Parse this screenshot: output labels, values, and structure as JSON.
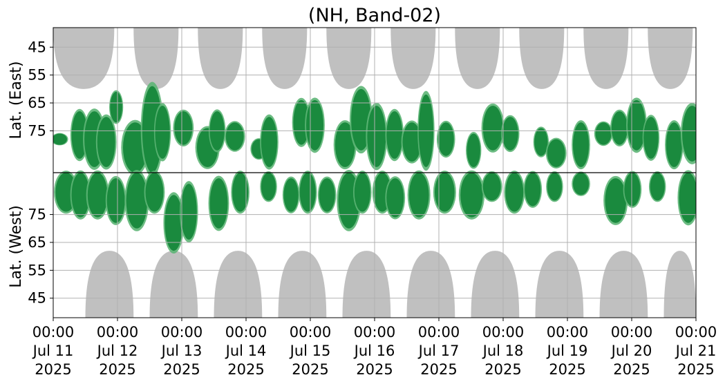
{
  "chart_data": {
    "type": "heatmap",
    "title": "(NH, Band-02)",
    "ylabel_top": "Lat. (East)",
    "ylabel_bottom": "Lat. (West)",
    "y_ticks_top": [
      "45",
      "55",
      "65",
      "75"
    ],
    "y_ticks_bottom": [
      "75",
      "65",
      "55",
      "45"
    ],
    "x_ticks": [
      {
        "time": "00:00",
        "date": "Jul 11",
        "year": "2025"
      },
      {
        "time": "00:00",
        "date": "Jul 12",
        "year": "2025"
      },
      {
        "time": "00:00",
        "date": "Jul 13",
        "year": "2025"
      },
      {
        "time": "00:00",
        "date": "Jul 14",
        "year": "2025"
      },
      {
        "time": "00:00",
        "date": "Jul 15",
        "year": "2025"
      },
      {
        "time": "00:00",
        "date": "Jul 16",
        "year": "2025"
      },
      {
        "time": "00:00",
        "date": "Jul 17",
        "year": "2025"
      },
      {
        "time": "00:00",
        "date": "Jul 18",
        "year": "2025"
      },
      {
        "time": "00:00",
        "date": "Jul 19",
        "year": "2025"
      },
      {
        "time": "00:00",
        "date": "Jul 20",
        "year": "2025"
      },
      {
        "time": "00:00",
        "date": "Jul 21",
        "year": "2025"
      }
    ],
    "x_range": [
      "2025-07-11 00:00",
      "2025-07-21 00:00"
    ],
    "lat_range_top": [
      38,
      90
    ],
    "lat_range_bottom": [
      90,
      38
    ],
    "grid": true,
    "colors": {
      "dense": "#1a8a3e",
      "sparse": "#5db575",
      "daylight": "#c0c0c0",
      "grid": "#b0b0b0",
      "divider": "#000000"
    },
    "daylight_top_days": [
      [
        11.0,
        11.95
      ],
      [
        12.25,
        12.95
      ],
      [
        13.25,
        13.95
      ],
      [
        14.25,
        14.95
      ],
      [
        15.25,
        15.95
      ],
      [
        16.25,
        16.95
      ],
      [
        17.25,
        17.95
      ],
      [
        18.25,
        18.95
      ],
      [
        19.25,
        19.95
      ],
      [
        20.25,
        20.95
      ]
    ],
    "daylight_bottom_days": [
      [
        11.5,
        12.25
      ],
      [
        12.5,
        13.25
      ],
      [
        13.5,
        14.25
      ],
      [
        14.5,
        15.25
      ],
      [
        15.5,
        16.25
      ],
      [
        16.5,
        17.25
      ],
      [
        17.5,
        18.25
      ],
      [
        18.5,
        19.25
      ],
      [
        19.5,
        20.25
      ],
      [
        20.5,
        21.0
      ]
    ],
    "green_top": [
      {
        "day": 11.05,
        "lat_low": 76,
        "lat_high": 80,
        "w": 0.1
      },
      {
        "day": 11.35,
        "lat_low": 68,
        "lat_high": 85,
        "w": 0.12
      },
      {
        "day": 11.55,
        "lat_low": 68,
        "lat_high": 88,
        "w": 0.18
      },
      {
        "day": 11.75,
        "lat_low": 70,
        "lat_high": 88,
        "w": 0.15
      },
      {
        "day": 11.95,
        "lat_low": 61,
        "lat_high": 72,
        "w": 0.06
      },
      {
        "day": 12.15,
        "lat_low": 72,
        "lat_high": 90,
        "w": 0.25
      },
      {
        "day": 12.45,
        "lat_low": 59,
        "lat_high": 90,
        "w": 0.18
      },
      {
        "day": 12.65,
        "lat_low": 66,
        "lat_high": 85,
        "w": 0.1
      },
      {
        "day": 12.95,
        "lat_low": 68,
        "lat_high": 80,
        "w": 0.15
      },
      {
        "day": 13.3,
        "lat_low": 74,
        "lat_high": 88,
        "w": 0.2
      },
      {
        "day": 13.5,
        "lat_low": 68,
        "lat_high": 82,
        "w": 0.1
      },
      {
        "day": 13.75,
        "lat_low": 72,
        "lat_high": 82,
        "w": 0.15
      },
      {
        "day": 14.15,
        "lat_low": 78,
        "lat_high": 85,
        "w": 0.1
      },
      {
        "day": 14.3,
        "lat_low": 70,
        "lat_high": 88,
        "w": 0.12
      },
      {
        "day": 14.8,
        "lat_low": 64,
        "lat_high": 80,
        "w": 0.12
      },
      {
        "day": 15.0,
        "lat_low": 64,
        "lat_high": 82,
        "w": 0.14
      },
      {
        "day": 15.45,
        "lat_low": 72,
        "lat_high": 88,
        "w": 0.18
      },
      {
        "day": 15.7,
        "lat_low": 60,
        "lat_high": 82,
        "w": 0.18
      },
      {
        "day": 15.95,
        "lat_low": 66,
        "lat_high": 88,
        "w": 0.16
      },
      {
        "day": 16.25,
        "lat_low": 68,
        "lat_high": 85,
        "w": 0.12
      },
      {
        "day": 16.5,
        "lat_low": 72,
        "lat_high": 86,
        "w": 0.16
      },
      {
        "day": 16.75,
        "lat_low": 62,
        "lat_high": 88,
        "w": 0.1
      },
      {
        "day": 17.05,
        "lat_low": 72,
        "lat_high": 84,
        "w": 0.12
      },
      {
        "day": 17.5,
        "lat_low": 76,
        "lat_high": 88,
        "w": 0.08
      },
      {
        "day": 17.75,
        "lat_low": 66,
        "lat_high": 82,
        "w": 0.18
      },
      {
        "day": 18.05,
        "lat_low": 70,
        "lat_high": 82,
        "w": 0.12
      },
      {
        "day": 18.55,
        "lat_low": 74,
        "lat_high": 84,
        "w": 0.08
      },
      {
        "day": 18.75,
        "lat_low": 78,
        "lat_high": 88,
        "w": 0.15
      },
      {
        "day": 19.15,
        "lat_low": 72,
        "lat_high": 88,
        "w": 0.12
      },
      {
        "day": 19.5,
        "lat_low": 72,
        "lat_high": 80,
        "w": 0.12
      },
      {
        "day": 19.75,
        "lat_low": 68,
        "lat_high": 80,
        "w": 0.12
      },
      {
        "day": 20.0,
        "lat_low": 64,
        "lat_high": 82,
        "w": 0.15
      },
      {
        "day": 20.25,
        "lat_low": 70,
        "lat_high": 85,
        "w": 0.1
      },
      {
        "day": 20.6,
        "lat_low": 72,
        "lat_high": 88,
        "w": 0.12
      },
      {
        "day": 20.85,
        "lat_low": 66,
        "lat_high": 86,
        "w": 0.18
      }
    ],
    "green_bottom": [
      {
        "day": 11.1,
        "lat_low": 76,
        "lat_high": 90,
        "w": 0.2
      },
      {
        "day": 11.35,
        "lat_low": 74,
        "lat_high": 90,
        "w": 0.15
      },
      {
        "day": 11.6,
        "lat_low": 74,
        "lat_high": 90,
        "w": 0.18
      },
      {
        "day": 11.9,
        "lat_low": 72,
        "lat_high": 88,
        "w": 0.15
      },
      {
        "day": 12.2,
        "lat_low": 70,
        "lat_high": 90,
        "w": 0.2
      },
      {
        "day": 12.5,
        "lat_low": 76,
        "lat_high": 90,
        "w": 0.15
      },
      {
        "day": 12.8,
        "lat_low": 62,
        "lat_high": 82,
        "w": 0.15
      },
      {
        "day": 13.05,
        "lat_low": 66,
        "lat_high": 86,
        "w": 0.12
      },
      {
        "day": 13.5,
        "lat_low": 70,
        "lat_high": 88,
        "w": 0.15
      },
      {
        "day": 13.85,
        "lat_low": 76,
        "lat_high": 90,
        "w": 0.12
      },
      {
        "day": 14.3,
        "lat_low": 80,
        "lat_high": 90,
        "w": 0.1
      },
      {
        "day": 14.65,
        "lat_low": 76,
        "lat_high": 88,
        "w": 0.1
      },
      {
        "day": 14.9,
        "lat_low": 76,
        "lat_high": 90,
        "w": 0.12
      },
      {
        "day": 15.2,
        "lat_low": 76,
        "lat_high": 88,
        "w": 0.12
      },
      {
        "day": 15.5,
        "lat_low": 70,
        "lat_high": 90,
        "w": 0.2
      },
      {
        "day": 15.75,
        "lat_low": 76,
        "lat_high": 90,
        "w": 0.12
      },
      {
        "day": 16.05,
        "lat_low": 76,
        "lat_high": 90,
        "w": 0.14
      },
      {
        "day": 16.25,
        "lat_low": 74,
        "lat_high": 88,
        "w": 0.14
      },
      {
        "day": 16.6,
        "lat_low": 74,
        "lat_high": 90,
        "w": 0.18
      },
      {
        "day": 17.0,
        "lat_low": 76,
        "lat_high": 90,
        "w": 0.18
      },
      {
        "day": 17.4,
        "lat_low": 74,
        "lat_high": 90,
        "w": 0.22
      },
      {
        "day": 17.75,
        "lat_low": 80,
        "lat_high": 90,
        "w": 0.15
      },
      {
        "day": 18.1,
        "lat_low": 76,
        "lat_high": 90,
        "w": 0.15
      },
      {
        "day": 18.4,
        "lat_low": 78,
        "lat_high": 90,
        "w": 0.12
      },
      {
        "day": 18.75,
        "lat_low": 80,
        "lat_high": 90,
        "w": 0.1
      },
      {
        "day": 19.15,
        "lat_low": 82,
        "lat_high": 90,
        "w": 0.12
      },
      {
        "day": 19.65,
        "lat_low": 72,
        "lat_high": 88,
        "w": 0.2
      },
      {
        "day": 19.95,
        "lat_low": 78,
        "lat_high": 90,
        "w": 0.12
      },
      {
        "day": 20.35,
        "lat_low": 80,
        "lat_high": 90,
        "w": 0.1
      },
      {
        "day": 20.8,
        "lat_low": 72,
        "lat_high": 90,
        "w": 0.16
      }
    ]
  }
}
